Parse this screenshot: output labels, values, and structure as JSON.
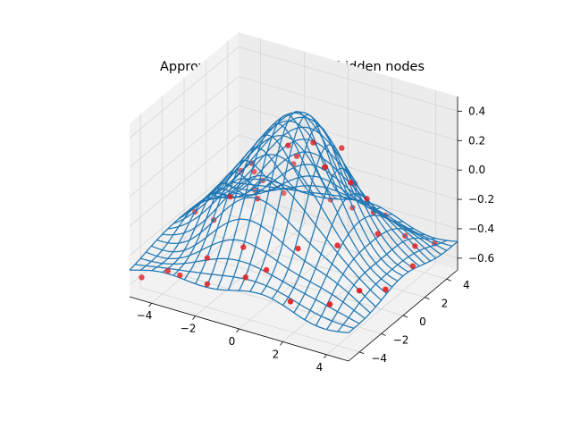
{
  "chart_data": {
    "type": "surface-wireframe-3d",
    "title": "Approximated function, 20 hidden nodes",
    "xlabel": "",
    "ylabel": "",
    "zlabel": "",
    "xlim": [
      -5,
      5
    ],
    "ylim": [
      -5,
      5
    ],
    "zlim": [
      -0.68,
      0.5
    ],
    "x_ticks": [
      -4,
      -2,
      0,
      2,
      4
    ],
    "y_ticks": [
      -4,
      -2,
      0,
      2,
      4
    ],
    "z_ticks": [
      0.4,
      0.2,
      0.0,
      -0.2,
      -0.4,
      -0.6
    ],
    "x_tick_labels": [
      "−4",
      "−2",
      "0",
      "2",
      "4"
    ],
    "y_tick_labels": [
      "−4",
      "−2",
      "0",
      "2",
      "4"
    ],
    "z_tick_labels": [
      "0.4",
      "0.2",
      "0.0",
      "−0.2",
      "−0.4",
      "−0.6"
    ],
    "grid": true,
    "surface": {
      "description_formula": "0.98*exp(-(x^2+y^2)/10) - 0.5 plus small ripples",
      "amplitude": 0.98,
      "width": 10,
      "offset": -0.5,
      "ripple": 0.04,
      "x_range": [
        -5,
        5
      ],
      "y_range": [
        -5,
        5
      ],
      "rows": 21,
      "cols": 21,
      "color": "#1f77b4"
    },
    "points": {
      "color": "#e31a1c",
      "x": [
        -4.6,
        -3.8,
        -3.1,
        -2.4,
        -1.7,
        -0.9,
        -0.2,
        0.5,
        1.3,
        2.0,
        2.8,
        3.5,
        4.3,
        -4.2,
        -3.0,
        -2.1,
        -1.2,
        -0.4,
        0.8,
        1.6,
        2.5,
        3.4,
        4.6,
        -3.6,
        -2.7,
        -1.5,
        0.1,
        1.0,
        2.2,
        3.9,
        -4.0,
        -2.5,
        -0.7,
        0.6,
        1.9,
        3.1,
        4.1,
        -1.9,
        0.3,
        2.6,
        -3.3,
        1.5,
        4.4
      ],
      "y": [
        -4.7,
        -3.9,
        -4.2,
        -3.1,
        -4.5,
        -2.8,
        -4.0,
        -3.5,
        -2.2,
        -4.3,
        -1.6,
        -3.7,
        -2.6,
        -0.6,
        -1.3,
        0.4,
        -0.9,
        1.1,
        0.2,
        -0.3,
        1.7,
        0.9,
        -0.8,
        2.4,
        1.8,
        3.0,
        2.6,
        3.6,
        2.9,
        3.3,
        4.5,
        4.1,
        4.8,
        4.2,
        4.6,
        4.0,
        4.7,
        -2.0,
        -1.1,
        0.0,
        3.8,
        1.4,
        2.1
      ],
      "z": [
        -0.55,
        -0.52,
        -0.5,
        -0.42,
        -0.48,
        -0.3,
        -0.4,
        -0.35,
        -0.25,
        -0.45,
        -0.2,
        -0.44,
        -0.38,
        -0.34,
        -0.3,
        0.02,
        -0.1,
        0.1,
        0.3,
        0.2,
        -0.1,
        -0.25,
        -0.47,
        -0.22,
        -0.15,
        -0.12,
        -0.05,
        -0.18,
        -0.28,
        -0.46,
        -0.5,
        -0.43,
        -0.44,
        -0.4,
        -0.42,
        -0.47,
        -0.52,
        -0.05,
        0.34,
        0.12,
        -0.36,
        0.22,
        -0.5
      ]
    }
  }
}
